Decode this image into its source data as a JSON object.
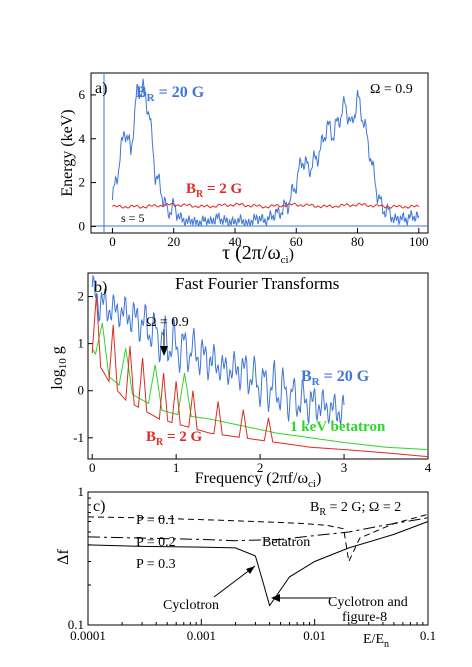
{
  "chart_data": [
    {
      "type": "line",
      "panel_label": "a)",
      "ylabel": "Energy (keV)",
      "xlabel": "τ (2π/ω",
      "xlabel_sub": "ci",
      "xlabel_close": ")",
      "xlim": [
        -7,
        103
      ],
      "ylim": [
        -0.3,
        7
      ],
      "xticks": [
        0,
        20,
        40,
        60,
        80,
        100
      ],
      "yticks": [
        0,
        2,
        4,
        6
      ],
      "omega_text": "Ω = 0.9",
      "s_text": "s = 5",
      "colors": {
        "blue": "#3f76d8",
        "red": "#e02a22"
      },
      "series": [
        {
          "name": "BR = 20 G",
          "name_main": "B",
          "name_sub": "R",
          "name_rest": " = 20 G",
          "color": "#3f76d8",
          "x": [
            0,
            2,
            4,
            6,
            8,
            10,
            12,
            14,
            16,
            18,
            20,
            22,
            24,
            26,
            28,
            30,
            32,
            34,
            36,
            38,
            40,
            42,
            44,
            46,
            48,
            50,
            52,
            54,
            56,
            58,
            60,
            62,
            64,
            66,
            68,
            70,
            72,
            74,
            76,
            78,
            80,
            82,
            84,
            86,
            88,
            90,
            92,
            94,
            96,
            98,
            100
          ],
          "y": [
            1.2,
            2.7,
            4.5,
            3.4,
            6.1,
            6.3,
            5.2,
            2.4,
            1.6,
            0.6,
            0.9,
            0.4,
            0.2,
            0.3,
            0.1,
            0.3,
            0.2,
            0.4,
            0.3,
            0.2,
            0.2,
            0.3,
            0.1,
            0.3,
            0.4,
            0.2,
            0.5,
            0.6,
            0.8,
            1.2,
            2.0,
            3.1,
            2.6,
            3.0,
            3.5,
            4.6,
            4.2,
            4.9,
            5.6,
            4.5,
            5.9,
            4.8,
            3.4,
            1.8,
            0.8,
            0.7,
            0.3,
            0.4,
            0.3,
            0.5,
            0.4
          ]
        },
        {
          "name": "BR = 2 G",
          "name_main": "B",
          "name_sub": "R",
          "name_rest": " = 2 G",
          "color": "#e02a22",
          "x": [
            0,
            10,
            20,
            30,
            40,
            50,
            60,
            70,
            80,
            90,
            100
          ],
          "y": [
            0.9,
            0.9,
            1.0,
            0.9,
            1.0,
            0.9,
            1.0,
            0.9,
            1.0,
            0.9,
            0.9
          ]
        }
      ]
    },
    {
      "type": "line",
      "panel_label": "b)",
      "title": "Fast Fourier Transforms",
      "ylabel_main": "log",
      "ylabel_sub": "10",
      "ylabel_rest": " g",
      "xlabel": "Frequency (2πf/ω",
      "xlabel_sub": "ci",
      "xlabel_close": ")",
      "xlim": [
        -0.05,
        4
      ],
      "ylim": [
        -1.45,
        2.5
      ],
      "xticks": [
        0,
        1,
        2,
        3,
        4
      ],
      "yticks": [
        -1,
        0,
        1,
        2
      ],
      "omega_text": "Ω = 0.9",
      "colors": {
        "blue": "#3f76d8",
        "red": "#e02a22",
        "green": "#2ed62a"
      },
      "series": [
        {
          "name": "BR = 20 G",
          "name_main": "B",
          "name_sub": "R",
          "name_rest": " = 20 G",
          "color": "#3f76d8",
          "x": [
            0,
            0.2,
            0.4,
            0.6,
            0.8,
            1.0,
            1.2,
            1.4,
            1.6,
            1.8,
            2.0,
            2.2,
            2.4,
            2.6,
            2.8,
            3.0
          ],
          "y": [
            2.2,
            1.9,
            1.8,
            1.6,
            1.3,
            1.1,
            1.0,
            0.8,
            0.6,
            0.6,
            0.3,
            0.2,
            0.0,
            -0.1,
            -0.2,
            -0.3
          ]
        },
        {
          "name": "1 keV betatron",
          "name_main": "1 keV betatron",
          "color": "#2ed62a",
          "x": [
            0,
            0.2,
            0.4,
            0.6,
            0.8,
            1.0,
            1.4,
            1.8,
            2.2,
            2.6,
            3.0,
            3.5,
            4.0
          ],
          "y": [
            0.9,
            0.3,
            0.0,
            -0.2,
            -0.4,
            -0.5,
            -0.6,
            -0.75,
            -0.9,
            -1.0,
            -1.1,
            -1.2,
            -1.25
          ]
        },
        {
          "name": "BR = 2 G",
          "name_main": "B",
          "name_sub": "R",
          "name_rest": " = 2 G",
          "color": "#e02a22",
          "x": [
            0,
            0.2,
            0.4,
            0.6,
            0.8,
            1.0,
            1.4,
            1.8,
            2.2,
            2.6,
            3.0,
            3.5,
            4.0
          ],
          "y": [
            0.8,
            0.2,
            -0.2,
            -0.4,
            -0.6,
            -0.7,
            -0.9,
            -1.0,
            -1.1,
            -1.2,
            -1.25,
            -1.32,
            -1.4
          ]
        }
      ]
    },
    {
      "type": "line",
      "panel_label": "c)",
      "ylabel": "Δf",
      "xlabel": "E/E",
      "xlabel_sub": "n",
      "xscale": "log",
      "yscale": "log",
      "xlim": [
        0.0001,
        0.1
      ],
      "ylim": [
        0.1,
        1
      ],
      "xticklabels": [
        "0.0001",
        "0.001",
        "0.01",
        "0.1"
      ],
      "yticklabels": [
        "1",
        "0.1"
      ],
      "legend_text_main": "B",
      "legend_text_sub": "R",
      "legend_text_rest": " = 2 G;    Ω = 2",
      "annotations": {
        "p1": "P = 0.1",
        "p2": "P = 0.2",
        "p3": "P = 0.3",
        "betatron": "Betatron",
        "cyclotron": "Cyclotron",
        "cyc_fig8_1": "Cyclotron and",
        "cyc_fig8_2": "figure-8"
      },
      "series": [
        {
          "name": "P = 0.1",
          "style": "dashed",
          "x": [
            0.0001,
            0.0003,
            0.001,
            0.003,
            0.008,
            0.013,
            0.018,
            0.02,
            0.025,
            0.05,
            0.1
          ],
          "y": [
            0.65,
            0.64,
            0.62,
            0.6,
            0.58,
            0.56,
            0.53,
            0.3,
            0.45,
            0.58,
            0.68
          ]
        },
        {
          "name": "P = 0.2",
          "style": "long-dash",
          "x": [
            0.0001,
            0.0003,
            0.001,
            0.002,
            0.005,
            0.01,
            0.02,
            0.04,
            0.1
          ],
          "y": [
            0.46,
            0.45,
            0.44,
            0.43,
            0.44,
            0.47,
            0.5,
            0.56,
            0.64
          ]
        },
        {
          "name": "P = 0.3",
          "style": "solid",
          "x": [
            0.0001,
            0.0003,
            0.001,
            0.002,
            0.003,
            0.0035,
            0.004,
            0.006,
            0.01,
            0.02,
            0.05,
            0.1
          ],
          "y": [
            0.4,
            0.39,
            0.385,
            0.38,
            0.33,
            0.21,
            0.14,
            0.23,
            0.3,
            0.38,
            0.48,
            0.6
          ]
        }
      ]
    }
  ]
}
